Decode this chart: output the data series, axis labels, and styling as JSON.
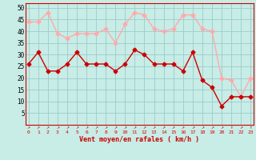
{
  "x": [
    0,
    1,
    2,
    3,
    4,
    5,
    6,
    7,
    8,
    9,
    10,
    11,
    12,
    13,
    14,
    15,
    16,
    17,
    18,
    19,
    20,
    21,
    22,
    23
  ],
  "wind_mean": [
    26,
    31,
    23,
    23,
    26,
    31,
    26,
    26,
    26,
    23,
    26,
    32,
    30,
    26,
    26,
    26,
    23,
    31,
    19,
    16,
    8,
    12,
    12,
    12
  ],
  "wind_gust": [
    44,
    44,
    48,
    39,
    37,
    39,
    39,
    39,
    41,
    35,
    43,
    48,
    47,
    41,
    40,
    41,
    47,
    47,
    41,
    40,
    20,
    19,
    12,
    20
  ],
  "bg_color": "#c8ece6",
  "grid_color": "#99cccc",
  "mean_color": "#cc0000",
  "gust_color": "#ffaaaa",
  "xlabel": "Vent moyen/en rafales ( km/h )",
  "xlabel_color": "#cc0000",
  "yticks": [
    5,
    10,
    15,
    20,
    25,
    30,
    35,
    40,
    45,
    50
  ],
  "ylim": [
    0,
    52
  ],
  "xlim": [
    -0.3,
    23.3
  ],
  "marker_size": 2.5,
  "line_width": 1.0,
  "directions": [
    "↗",
    "↗",
    "↗",
    "↗",
    "↗",
    "↗",
    "↗",
    "↗",
    "↗",
    "↗",
    "↗",
    "↗",
    "↗",
    "↗",
    "↗",
    "↗",
    "↗",
    "↗",
    "↗",
    "↗",
    "↗",
    "↑",
    "↗",
    "↑"
  ]
}
